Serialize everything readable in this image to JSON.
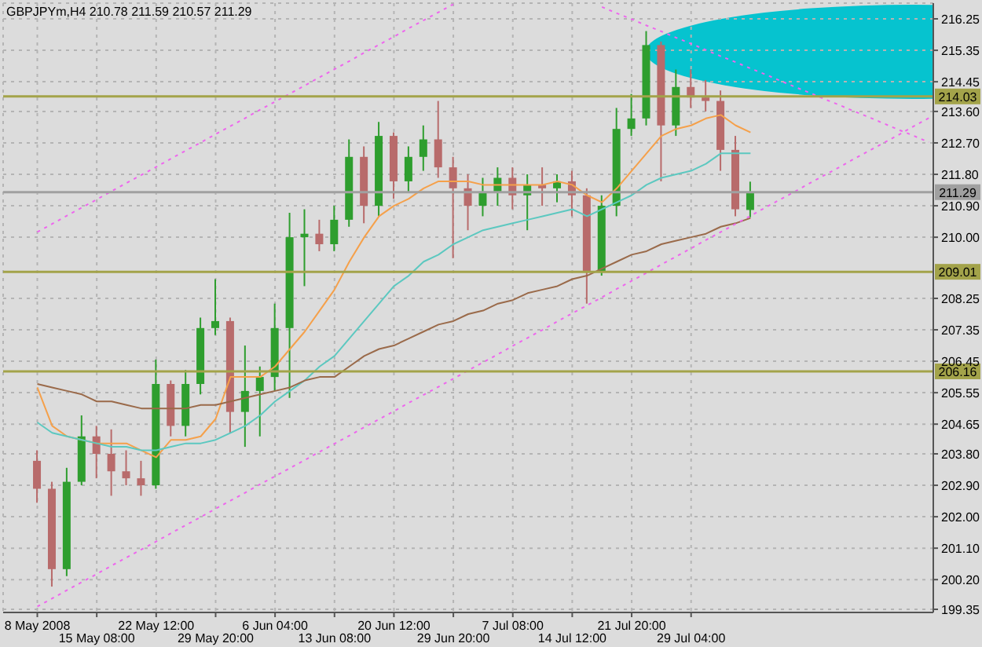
{
  "chart_data": {
    "type": "candlestick",
    "title": "GBPJPYm,H4  210.78 211.59 210.57 211.29",
    "categories": [
      "8 May 2008",
      null,
      null,
      null,
      "15 May 08:00",
      null,
      null,
      null,
      "22 May 12:00",
      null,
      null,
      null,
      "29 May 20:00",
      null,
      null,
      null,
      "6 Jun 04:00",
      null,
      null,
      null,
      "13 Jun 08:00",
      null,
      null,
      null,
      "20 Jun 12:00",
      null,
      null,
      null,
      "29 Jun 20:00",
      null,
      null,
      null,
      "7 Jul 08:00",
      null,
      null,
      null,
      "14 Jul 12:00",
      null,
      null,
      null,
      "21 Jul 20:00",
      null,
      null,
      null,
      "29 Jul 04:00",
      null,
      null,
      null,
      null,
      null,
      null,
      null,
      null,
      null,
      null,
      null,
      null,
      null,
      null,
      null,
      null
    ],
    "ohlc": [
      [
        203.6,
        203.9,
        202.4,
        202.8
      ],
      [
        202.8,
        203.0,
        200.0,
        200.5
      ],
      [
        200.5,
        203.4,
        200.3,
        203.0
      ],
      [
        203.0,
        204.9,
        202.9,
        204.3
      ],
      [
        204.3,
        204.6,
        203.1,
        203.8
      ],
      [
        203.8,
        204.5,
        202.6,
        203.3
      ],
      [
        203.3,
        203.9,
        202.9,
        203.1
      ],
      [
        203.1,
        203.6,
        202.6,
        202.9
      ],
      [
        202.9,
        206.5,
        202.8,
        205.8
      ],
      [
        205.8,
        205.9,
        204.3,
        204.6
      ],
      [
        204.6,
        206.2,
        204.3,
        205.8
      ],
      [
        205.8,
        207.7,
        205.5,
        207.4
      ],
      [
        207.4,
        208.8,
        207.2,
        207.6
      ],
      [
        207.6,
        207.7,
        204.4,
        205.0
      ],
      [
        205.0,
        206.9,
        204.0,
        205.6
      ],
      [
        205.6,
        206.3,
        204.3,
        206.0
      ],
      [
        206.0,
        208.1,
        205.6,
        207.4
      ],
      [
        207.4,
        210.7,
        205.4,
        210.0
      ],
      [
        210.0,
        210.8,
        208.6,
        210.1
      ],
      [
        210.1,
        210.5,
        209.6,
        209.8
      ],
      [
        209.8,
        210.9,
        209.6,
        210.5
      ],
      [
        210.5,
        212.8,
        210.3,
        212.3
      ],
      [
        212.3,
        212.6,
        210.4,
        210.9
      ],
      [
        210.9,
        213.3,
        210.6,
        212.9
      ],
      [
        212.9,
        213.0,
        211.1,
        211.6
      ],
      [
        211.6,
        212.6,
        211.3,
        212.3
      ],
      [
        212.3,
        213.2,
        211.9,
        212.8
      ],
      [
        212.8,
        213.9,
        211.7,
        212.0
      ],
      [
        212.0,
        212.3,
        209.4,
        211.4
      ],
      [
        211.4,
        211.8,
        210.2,
        210.9
      ],
      [
        210.9,
        211.7,
        210.6,
        211.3
      ],
      [
        211.3,
        212.0,
        210.9,
        211.7
      ],
      [
        211.7,
        212.0,
        210.8,
        211.2
      ],
      [
        211.2,
        211.8,
        210.2,
        211.5
      ],
      [
        211.5,
        212.0,
        210.9,
        211.4
      ],
      [
        211.4,
        211.8,
        211.0,
        211.6
      ],
      [
        211.6,
        211.9,
        210.6,
        211.2
      ],
      [
        211.2,
        211.4,
        208.1,
        209.0
      ],
      [
        209.0,
        211.2,
        208.9,
        210.9
      ],
      [
        210.9,
        213.7,
        210.6,
        213.1
      ],
      [
        213.1,
        214.1,
        212.9,
        213.4
      ],
      [
        213.4,
        215.9,
        213.2,
        215.5
      ],
      [
        215.5,
        215.6,
        211.6,
        213.2
      ],
      [
        213.2,
        214.8,
        212.9,
        214.3
      ],
      [
        214.3,
        214.8,
        213.7,
        214.0
      ],
      [
        214.0,
        214.5,
        213.6,
        213.9
      ],
      [
        213.9,
        214.2,
        211.9,
        212.5
      ],
      [
        212.5,
        212.9,
        210.6,
        210.8
      ],
      [
        210.78,
        211.59,
        210.57,
        211.29
      ],
      null,
      null,
      null,
      null,
      null,
      null,
      null,
      null,
      null,
      null,
      null,
      null
    ],
    "colors": [
      "#b86b6b",
      "#b86b6b",
      "#2e9e2e",
      "#2e9e2e",
      "#b86b6b",
      "#b86b6b",
      "#b86b6b",
      "#b86b6b",
      "#2e9e2e",
      "#b86b6b",
      "#2e9e2e",
      "#2e9e2e",
      "#2e9e2e",
      "#b86b6b",
      "#2e9e2e",
      "#2e9e2e",
      "#2e9e2e",
      "#2e9e2e",
      "#2e9e2e",
      "#b86b6b",
      "#2e9e2e",
      "#2e9e2e",
      "#b86b6b",
      "#2e9e2e",
      "#b86b6b",
      "#2e9e2e",
      "#2e9e2e",
      "#b86b6b",
      "#b86b6b",
      "#b86b6b",
      "#2e9e2e",
      "#2e9e2e",
      "#b86b6b",
      "#2e9e2e",
      "#b86b6b",
      "#2e9e2e",
      "#b86b6b",
      "#b86b6b",
      "#2e9e2e",
      "#2e9e2e",
      "#2e9e2e",
      "#2e9e2e",
      "#b86b6b",
      "#2e9e2e",
      "#b86b6b",
      "#b86b6b",
      "#b86b6b",
      "#b86b6b",
      "#2e9e2e",
      null,
      null,
      null,
      null,
      null,
      null,
      null,
      null,
      null,
      null,
      null,
      null
    ],
    "series": [
      {
        "type": "line",
        "color": "#f5a04a",
        "line_style": "solid",
        "values": [
          205.7,
          204.6,
          204.3,
          204.2,
          204.1,
          204.1,
          204.1,
          203.9,
          203.7,
          204.2,
          204.2,
          204.3,
          204.8,
          206.0,
          206.0,
          206.0,
          206.3,
          206.8,
          207.3,
          207.9,
          208.5,
          209.3,
          210.0,
          210.6,
          210.9,
          211.1,
          211.4,
          211.6,
          211.6,
          211.6,
          211.5,
          211.5,
          211.5,
          211.5,
          211.5,
          211.6,
          211.5,
          211.2,
          211.0,
          211.4,
          211.9,
          212.4,
          212.9,
          213.1,
          213.2,
          213.4,
          213.5,
          213.2,
          213.0,
          null,
          null,
          null,
          null,
          null,
          null,
          null,
          null,
          null,
          null,
          null,
          null
        ]
      },
      {
        "type": "line",
        "color": "#5cc8c0",
        "line_style": "solid",
        "values": [
          204.7,
          204.4,
          204.3,
          204.2,
          204.1,
          204.0,
          204.0,
          203.9,
          203.9,
          204.0,
          204.1,
          204.1,
          204.2,
          204.4,
          204.6,
          204.9,
          205.3,
          205.6,
          205.9,
          206.3,
          206.6,
          207.1,
          207.6,
          208.1,
          208.6,
          208.9,
          209.3,
          209.5,
          209.8,
          210.0,
          210.2,
          210.3,
          210.4,
          210.5,
          210.6,
          210.7,
          210.8,
          210.6,
          210.8,
          211.0,
          211.2,
          211.5,
          211.7,
          211.8,
          211.9,
          212.1,
          212.4,
          212.4,
          212.4,
          null,
          null,
          null,
          null,
          null,
          null,
          null,
          null,
          null,
          null,
          null,
          null
        ]
      },
      {
        "type": "line",
        "color": "#9a6a4a",
        "line_style": "solid",
        "values": [
          205.8,
          205.7,
          205.6,
          205.5,
          205.3,
          205.3,
          205.2,
          205.1,
          205.1,
          205.1,
          205.1,
          205.2,
          205.2,
          205.3,
          205.4,
          205.5,
          205.6,
          205.7,
          205.9,
          206.0,
          206.0,
          206.3,
          206.6,
          206.8,
          206.9,
          207.1,
          207.3,
          207.5,
          207.6,
          207.8,
          207.9,
          208.1,
          208.2,
          208.4,
          208.5,
          208.6,
          208.8,
          208.9,
          209.1,
          209.3,
          209.5,
          209.6,
          209.8,
          209.9,
          210.0,
          210.1,
          210.3,
          210.4,
          210.55,
          null,
          null,
          null,
          null,
          null,
          null,
          null,
          null,
          null,
          null,
          null,
          null
        ]
      },
      {
        "type": "line",
        "color": "#ee66ee",
        "line_style": "dotted",
        "values": [
          199.43,
          199.66,
          199.9,
          200.13,
          200.36,
          200.6,
          200.83,
          201.06,
          201.29,
          201.53,
          201.76,
          201.99,
          202.23,
          202.46,
          202.69,
          202.93,
          203.16,
          203.39,
          203.62,
          203.86,
          204.09,
          204.32,
          204.56,
          204.79,
          205.02,
          205.26,
          205.49,
          205.72,
          205.95,
          206.19,
          206.42,
          206.65,
          206.89,
          207.12,
          207.35,
          207.59,
          207.82,
          208.05,
          208.28,
          208.52,
          208.75,
          208.98,
          209.22,
          209.45,
          209.68,
          209.92,
          210.15,
          210.38,
          210.61,
          210.85,
          211.08,
          211.31,
          211.55,
          211.78,
          212.01,
          212.25,
          212.48,
          212.71,
          212.94,
          213.18,
          213.41
        ]
      },
      {
        "type": "line",
        "color": "#ee66ee",
        "line_style": "dotted",
        "values": [
          210.15,
          210.38,
          210.62,
          210.85,
          211.08,
          211.32,
          211.55,
          211.78,
          212.01,
          212.25,
          212.48,
          212.71,
          212.95,
          213.18,
          213.41,
          213.65,
          213.88,
          214.11,
          214.34,
          214.58,
          214.81,
          215.04,
          215.28,
          215.51,
          215.74,
          215.98,
          216.21,
          216.44,
          216.67,
          null,
          null,
          null,
          null,
          null,
          null,
          null,
          null,
          null,
          null,
          null,
          null,
          null,
          null,
          null,
          null,
          null,
          null,
          null,
          null,
          null,
          null,
          null,
          null,
          null,
          null,
          null,
          null,
          null,
          null,
          null,
          null
        ]
      },
      {
        "type": "line",
        "color": "#ee66ee",
        "line_style": "dotted",
        "values": [
          null,
          null,
          null,
          null,
          null,
          null,
          null,
          null,
          null,
          null,
          null,
          null,
          null,
          null,
          null,
          null,
          null,
          null,
          null,
          null,
          null,
          null,
          null,
          null,
          null,
          null,
          null,
          null,
          null,
          null,
          null,
          null,
          null,
          null,
          null,
          null,
          null,
          null,
          216.59,
          216.41,
          216.24,
          216.06,
          215.89,
          215.71,
          215.54,
          215.36,
          215.18,
          215.01,
          214.83,
          214.66,
          214.48,
          214.3,
          214.13,
          213.95,
          213.78,
          213.6,
          213.43,
          213.25,
          213.07,
          212.9,
          212.72
        ]
      }
    ],
    "ylim": [
      199.26,
      216.7
    ],
    "yticks": [
      {
        "value": 199.35,
        "label": "199.35"
      },
      {
        "value": 200.2,
        "label": "200.20"
      },
      {
        "value": 201.1,
        "label": "201.10"
      },
      {
        "value": 202,
        "label": "202.00"
      },
      {
        "value": 202.9,
        "label": "202.90"
      },
      {
        "value": 203.8,
        "label": "203.80"
      },
      {
        "value": 204.65,
        "label": "204.65"
      },
      {
        "value": 205.55,
        "label": "205.55"
      },
      {
        "value": 206.45,
        "label": "206.45"
      },
      {
        "value": 207.35,
        "label": "207.35"
      },
      {
        "value": 208.25,
        "label": "208.25"
      },
      {
        "value": 210,
        "label": "210.00"
      },
      {
        "value": 210.9,
        "label": "210.90"
      },
      {
        "value": 211.8,
        "label": "211.80"
      },
      {
        "value": 212.7,
        "label": "212.70"
      },
      {
        "value": 213.6,
        "label": "213.60"
      },
      {
        "value": 214.45,
        "label": "214.45"
      },
      {
        "value": 215.35,
        "label": "215.35"
      },
      {
        "value": 216.25,
        "label": "216.25"
      }
    ],
    "ref_lines": [
      {
        "axis": "y",
        "value": 214.03,
        "label": "214.03",
        "color": "#a3a34a"
      },
      {
        "axis": "y",
        "value": 209.01,
        "label": "209.01",
        "color": "#a3a34a"
      },
      {
        "axis": "y",
        "value": 206.16,
        "label": "206.16",
        "color": "#a3a34a"
      },
      {
        "axis": "y",
        "value": 211.29,
        "label": "211.29",
        "color": "#a0a0a0"
      }
    ],
    "grid": true
  }
}
